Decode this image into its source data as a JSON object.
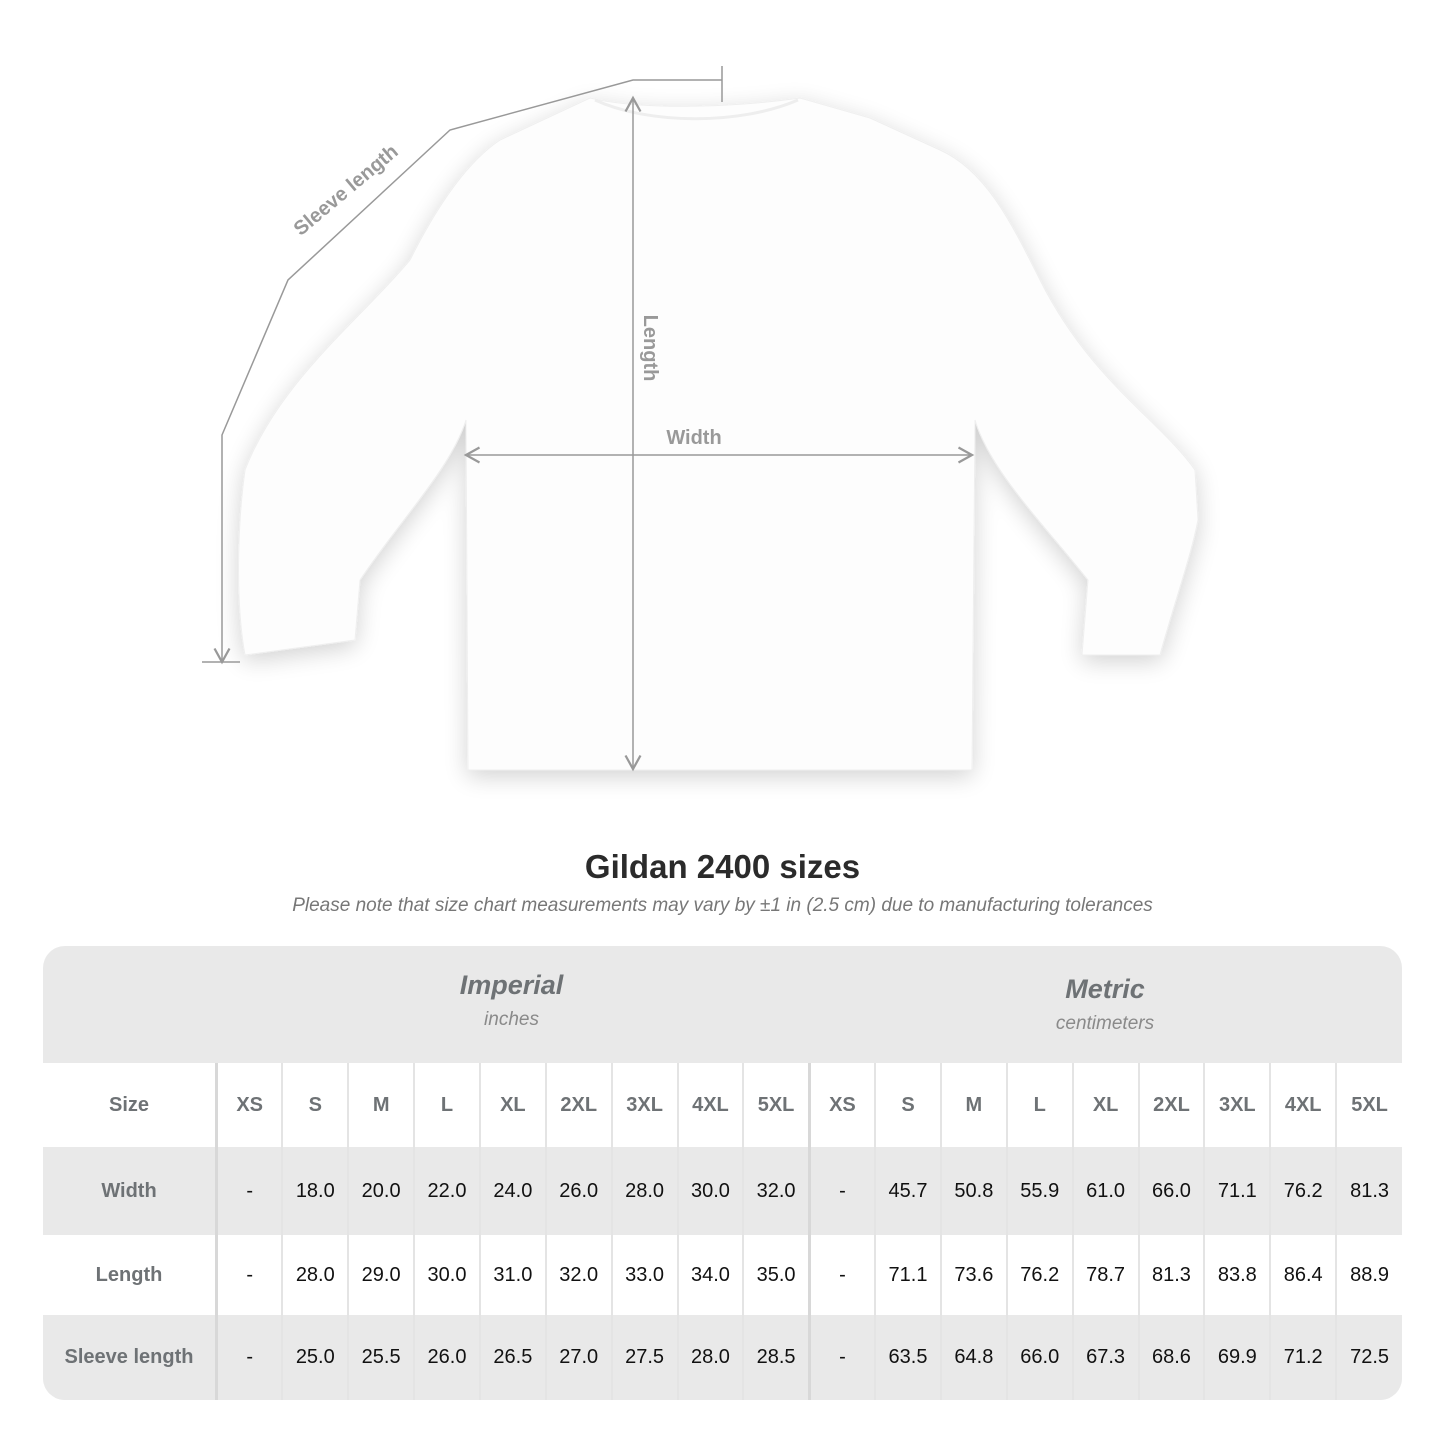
{
  "diagram": {
    "sleeve_label": "Sleeve length",
    "length_label": "Length",
    "width_label": "Width",
    "line_color": "#999999"
  },
  "title": "Gildan 2400 sizes",
  "note": "Please note that size chart measurements may vary by ±1 in (2.5 cm) due to manufacturing tolerances",
  "imperial": {
    "name": "Imperial",
    "unit": "inches"
  },
  "metric": {
    "name": "Metric",
    "unit": "centimeters"
  },
  "table": {
    "size_label": "Size",
    "sizes": [
      "XS",
      "S",
      "M",
      "L",
      "XL",
      "2XL",
      "3XL",
      "4XL",
      "5XL"
    ],
    "rows": [
      {
        "label": "Width",
        "imperial": [
          "-",
          "18.0",
          "20.0",
          "22.0",
          "24.0",
          "26.0",
          "28.0",
          "30.0",
          "32.0"
        ],
        "metric": [
          "-",
          "45.7",
          "50.8",
          "55.9",
          "61.0",
          "66.0",
          "71.1",
          "76.2",
          "81.3"
        ]
      },
      {
        "label": "Length",
        "imperial": [
          "-",
          "28.0",
          "29.0",
          "30.0",
          "31.0",
          "32.0",
          "33.0",
          "34.0",
          "35.0"
        ],
        "metric": [
          "-",
          "71.1",
          "73.6",
          "76.2",
          "78.7",
          "81.3",
          "83.8",
          "86.4",
          "88.9"
        ]
      },
      {
        "label": "Sleeve length",
        "imperial": [
          "-",
          "25.0",
          "25.5",
          "26.0",
          "26.5",
          "27.0",
          "27.5",
          "28.0",
          "28.5"
        ],
        "metric": [
          "-",
          "63.5",
          "64.8",
          "66.0",
          "67.3",
          "68.6",
          "69.9",
          "71.2",
          "72.5"
        ]
      }
    ]
  }
}
